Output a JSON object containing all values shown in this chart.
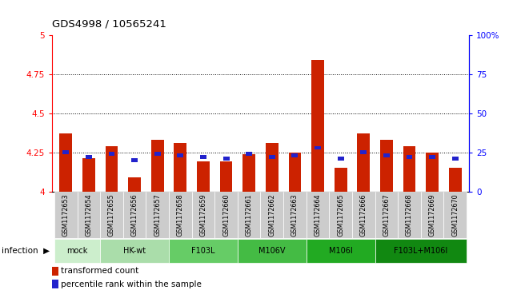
{
  "title": "GDS4998 / 10565241",
  "samples": [
    "GSM1172653",
    "GSM1172654",
    "GSM1172655",
    "GSM1172656",
    "GSM1172657",
    "GSM1172658",
    "GSM1172659",
    "GSM1172660",
    "GSM1172661",
    "GSM1172662",
    "GSM1172663",
    "GSM1172664",
    "GSM1172665",
    "GSM1172666",
    "GSM1172667",
    "GSM1172668",
    "GSM1172669",
    "GSM1172670"
  ],
  "red_values": [
    4.37,
    4.21,
    4.29,
    4.09,
    4.33,
    4.31,
    4.19,
    4.19,
    4.24,
    4.31,
    4.25,
    4.84,
    4.15,
    4.37,
    4.33,
    4.29,
    4.25,
    4.15
  ],
  "blue_values": [
    4.25,
    4.22,
    4.24,
    4.2,
    4.24,
    4.23,
    4.22,
    4.21,
    4.24,
    4.22,
    4.23,
    4.28,
    4.21,
    4.25,
    4.23,
    4.22,
    4.22,
    4.21
  ],
  "ylim_left": [
    4.0,
    5.0
  ],
  "ylim_right": [
    0,
    100
  ],
  "yticks_left": [
    4.0,
    4.25,
    4.5,
    4.75,
    5.0
  ],
  "yticks_right": [
    0,
    25,
    50,
    75,
    100
  ],
  "ytick_labels_left": [
    "4",
    "4.25",
    "4.5",
    "4.75",
    "5"
  ],
  "ytick_labels_right": [
    "0",
    "25",
    "50",
    "75",
    "100%"
  ],
  "hlines": [
    4.25,
    4.5,
    4.75
  ],
  "bar_color": "#cc2200",
  "marker_color": "#2222cc",
  "bar_width": 0.55,
  "legend_red": "transformed count",
  "legend_blue": "percentile rank within the sample",
  "group_colors": [
    "#cceecc",
    "#aaddaa",
    "#66cc66",
    "#44bb44",
    "#22aa22",
    "#118811"
  ],
  "group_labels": [
    "mock",
    "HK-wt",
    "F103L",
    "M106V",
    "M106I",
    "F103L+M106I"
  ],
  "group_starts": [
    0,
    2,
    5,
    8,
    11,
    14
  ],
  "group_ends": [
    2,
    5,
    8,
    11,
    14,
    18
  ]
}
